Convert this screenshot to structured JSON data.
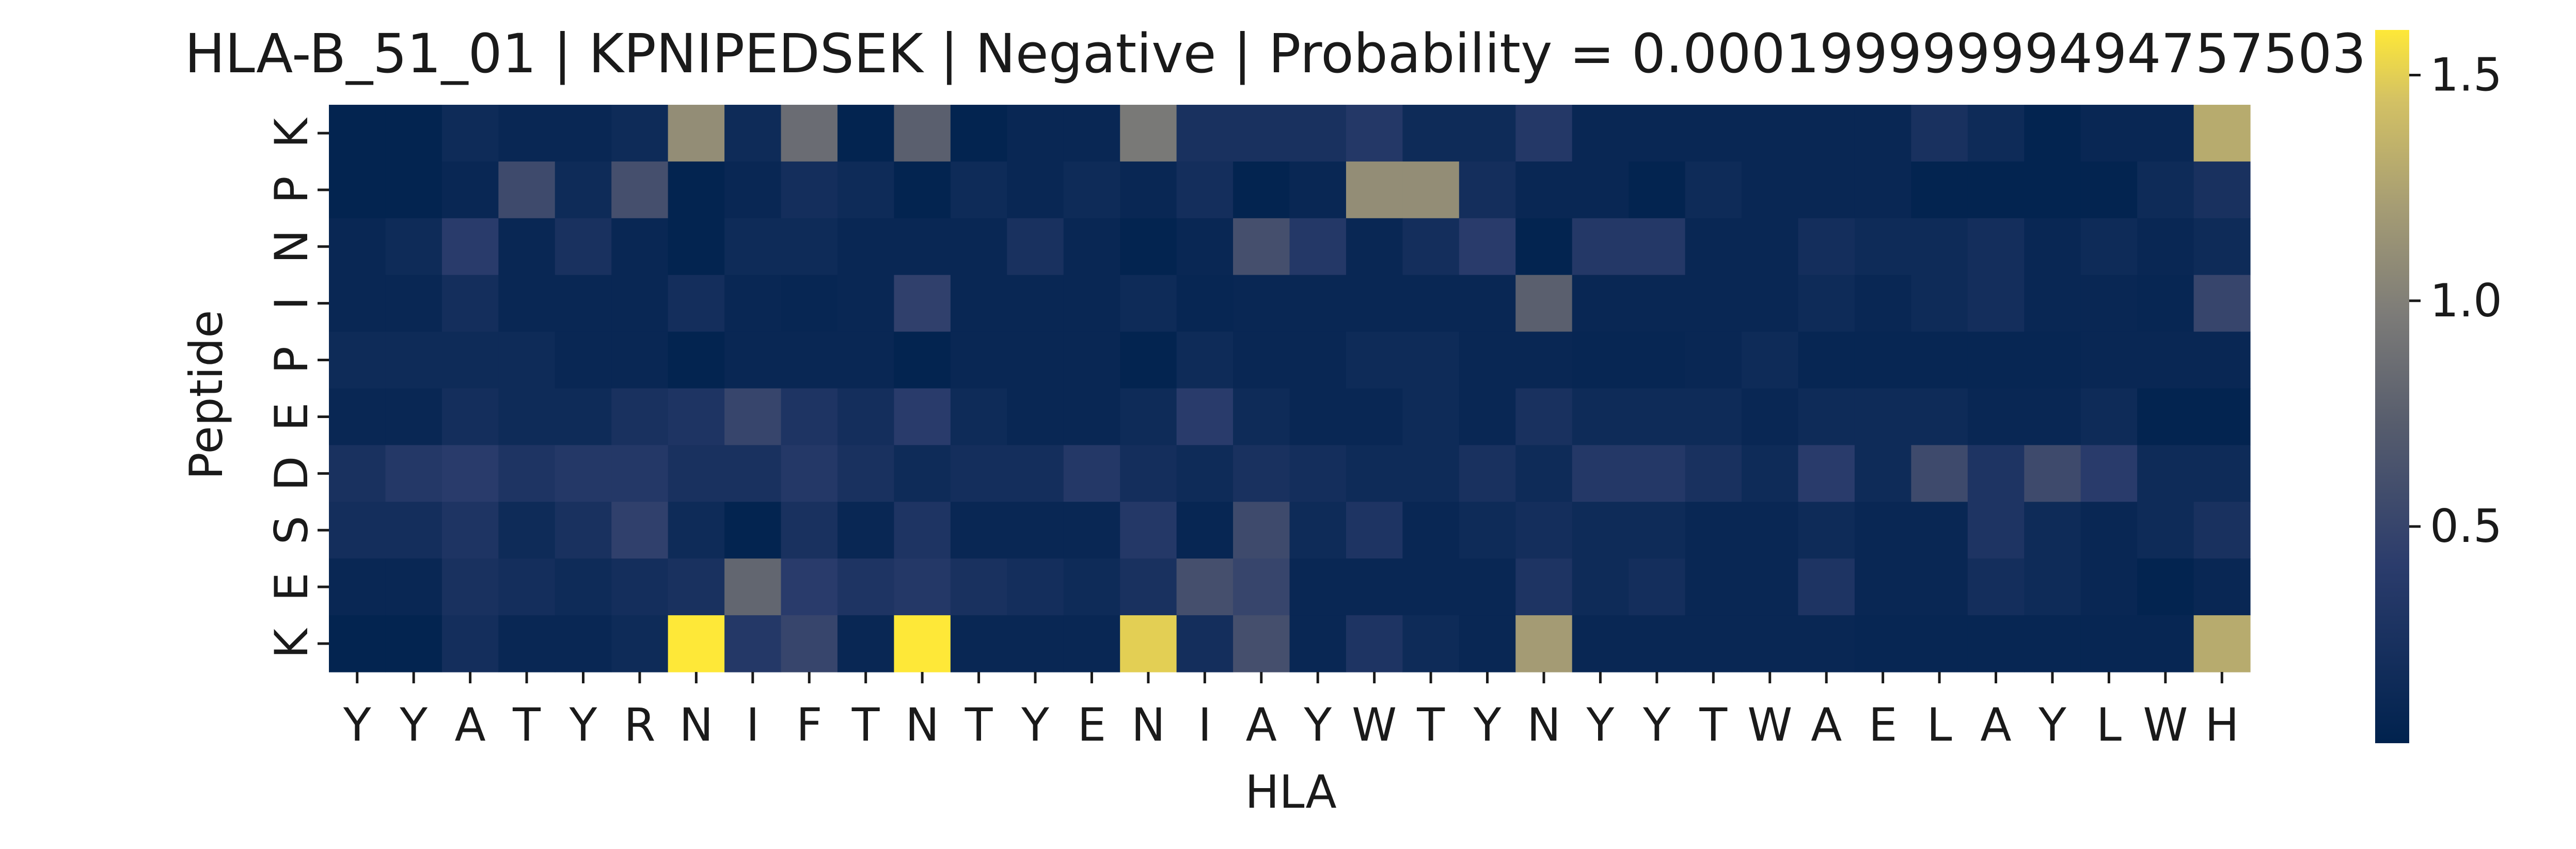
{
  "chart_data": {
    "type": "heatmap",
    "title": "HLA-B_51_01 | KPNIPEDSEK | Negative | Probability = 0.00019999999494757503",
    "xlabel": "HLA",
    "ylabel": "Peptide",
    "x_ticks": [
      "Y",
      "Y",
      "A",
      "T",
      "Y",
      "R",
      "N",
      "I",
      "F",
      "T",
      "N",
      "T",
      "Y",
      "E",
      "N",
      "I",
      "A",
      "Y",
      "W",
      "T",
      "Y",
      "N",
      "Y",
      "Y",
      "T",
      "W",
      "A",
      "E",
      "L",
      "A",
      "Y",
      "L",
      "W",
      "H"
    ],
    "y_ticks": [
      "K",
      "P",
      "N",
      "I",
      "P",
      "E",
      "D",
      "S",
      "E",
      "K"
    ],
    "colormap": "cividis",
    "colorbar": {
      "ticks": [
        0.5,
        1.0,
        1.5
      ],
      "tick_labels": [
        "0.5",
        "1.0",
        "1.5"
      ],
      "vmin": 0.02,
      "vmax": 1.6
    },
    "grid": false,
    "values": [
      [
        0.05,
        0.05,
        0.15,
        0.1,
        0.1,
        0.15,
        1.1,
        0.15,
        0.85,
        0.05,
        0.75,
        0.05,
        0.1,
        0.1,
        0.95,
        0.25,
        0.25,
        0.25,
        0.35,
        0.15,
        0.15,
        0.35,
        0.1,
        0.1,
        0.1,
        0.1,
        0.1,
        0.1,
        0.25,
        0.15,
        0.05,
        0.1,
        0.1,
        1.3
      ],
      [
        0.05,
        0.05,
        0.1,
        0.55,
        0.15,
        0.6,
        0.05,
        0.1,
        0.2,
        0.15,
        0.05,
        0.15,
        0.1,
        0.15,
        0.1,
        0.2,
        0.05,
        0.1,
        1.1,
        1.1,
        0.2,
        0.1,
        0.1,
        0.05,
        0.15,
        0.1,
        0.1,
        0.1,
        0.05,
        0.05,
        0.05,
        0.05,
        0.15,
        0.25
      ],
      [
        0.1,
        0.15,
        0.4,
        0.1,
        0.25,
        0.1,
        0.05,
        0.15,
        0.15,
        0.1,
        0.1,
        0.1,
        0.25,
        0.1,
        0.05,
        0.1,
        0.6,
        0.35,
        0.1,
        0.2,
        0.4,
        0.05,
        0.35,
        0.35,
        0.1,
        0.1,
        0.2,
        0.15,
        0.15,
        0.2,
        0.1,
        0.15,
        0.1,
        0.15
      ],
      [
        0.1,
        0.1,
        0.2,
        0.1,
        0.1,
        0.1,
        0.2,
        0.1,
        0.08,
        0.1,
        0.45,
        0.1,
        0.1,
        0.1,
        0.15,
        0.08,
        0.1,
        0.1,
        0.1,
        0.1,
        0.1,
        0.75,
        0.1,
        0.1,
        0.1,
        0.1,
        0.15,
        0.1,
        0.15,
        0.2,
        0.1,
        0.1,
        0.08,
        0.5
      ],
      [
        0.15,
        0.15,
        0.15,
        0.15,
        0.1,
        0.1,
        0.05,
        0.1,
        0.1,
        0.1,
        0.05,
        0.1,
        0.1,
        0.1,
        0.05,
        0.15,
        0.1,
        0.1,
        0.15,
        0.15,
        0.1,
        0.1,
        0.08,
        0.08,
        0.1,
        0.15,
        0.08,
        0.08,
        0.08,
        0.08,
        0.08,
        0.1,
        0.1,
        0.1
      ],
      [
        0.1,
        0.1,
        0.2,
        0.15,
        0.15,
        0.25,
        0.3,
        0.5,
        0.3,
        0.2,
        0.4,
        0.15,
        0.1,
        0.1,
        0.15,
        0.4,
        0.15,
        0.1,
        0.1,
        0.15,
        0.1,
        0.25,
        0.15,
        0.15,
        0.15,
        0.1,
        0.15,
        0.15,
        0.15,
        0.1,
        0.1,
        0.15,
        0.05,
        0.05
      ],
      [
        0.25,
        0.35,
        0.4,
        0.3,
        0.35,
        0.35,
        0.25,
        0.25,
        0.35,
        0.25,
        0.15,
        0.2,
        0.2,
        0.35,
        0.2,
        0.15,
        0.25,
        0.2,
        0.15,
        0.15,
        0.25,
        0.15,
        0.35,
        0.35,
        0.25,
        0.15,
        0.4,
        0.15,
        0.55,
        0.3,
        0.55,
        0.4,
        0.15,
        0.15
      ],
      [
        0.2,
        0.2,
        0.3,
        0.15,
        0.25,
        0.45,
        0.15,
        0.05,
        0.25,
        0.1,
        0.3,
        0.1,
        0.1,
        0.1,
        0.35,
        0.08,
        0.55,
        0.15,
        0.3,
        0.1,
        0.15,
        0.2,
        0.15,
        0.15,
        0.1,
        0.1,
        0.15,
        0.1,
        0.1,
        0.3,
        0.15,
        0.1,
        0.15,
        0.25
      ],
      [
        0.1,
        0.1,
        0.25,
        0.2,
        0.15,
        0.2,
        0.25,
        0.8,
        0.4,
        0.3,
        0.35,
        0.25,
        0.2,
        0.15,
        0.25,
        0.6,
        0.5,
        0.1,
        0.1,
        0.1,
        0.1,
        0.3,
        0.15,
        0.2,
        0.1,
        0.1,
        0.3,
        0.1,
        0.1,
        0.2,
        0.15,
        0.1,
        0.05,
        0.1
      ],
      [
        0.05,
        0.05,
        0.2,
        0.1,
        0.1,
        0.15,
        1.6,
        0.35,
        0.5,
        0.1,
        1.6,
        0.1,
        0.1,
        0.1,
        1.5,
        0.2,
        0.6,
        0.1,
        0.3,
        0.15,
        0.1,
        1.2,
        0.1,
        0.1,
        0.1,
        0.1,
        0.1,
        0.08,
        0.08,
        0.08,
        0.08,
        0.08,
        0.08,
        1.3
      ]
    ]
  }
}
